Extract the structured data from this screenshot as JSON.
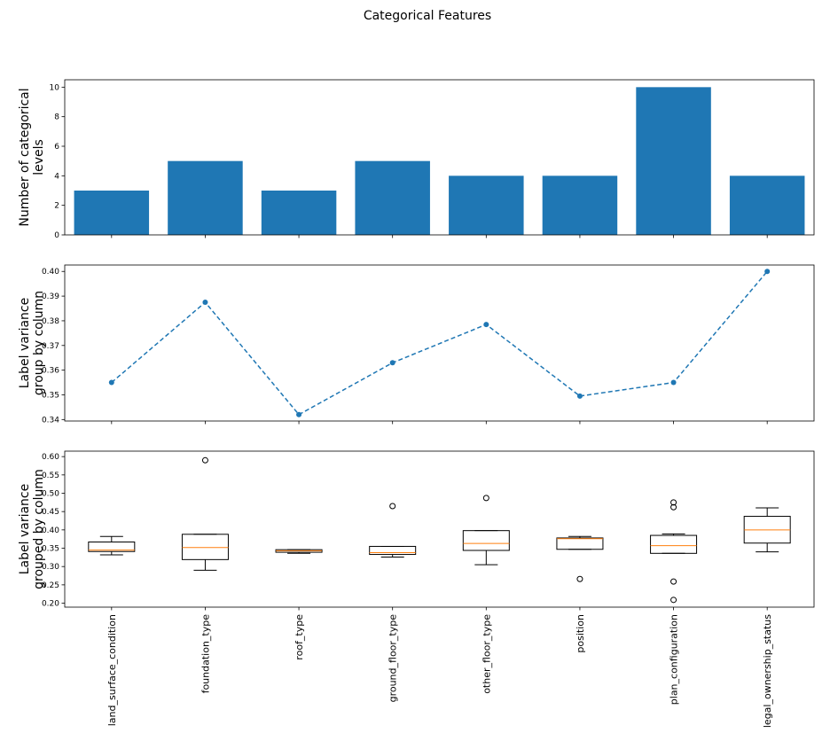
{
  "figure": {
    "title": "Categorical Features"
  },
  "colors": {
    "bar": "#1f77b4",
    "line": "#1f77b4",
    "median": "#ff7f0e",
    "box": "#000000"
  },
  "chart_data": [
    {
      "type": "bar",
      "categories": [
        "land_surface_condition",
        "foundation_type",
        "roof_type",
        "ground_floor_type",
        "other_floor_type",
        "position",
        "plan_configuration",
        "legal_ownership_status"
      ],
      "values": [
        3,
        5,
        3,
        5,
        4,
        4,
        10,
        4
      ],
      "ylabel_lines": [
        "Number of categorical",
        "levels"
      ],
      "ylim": [
        0,
        10.5
      ],
      "yticks": [
        0,
        2,
        4,
        6,
        8,
        10
      ],
      "ytick_labels": [
        "0",
        "2",
        "4",
        "6",
        "8",
        "10"
      ],
      "grid": false
    },
    {
      "type": "line",
      "style": "dashed with circle markers",
      "categories": [
        "land_surface_condition",
        "foundation_type",
        "roof_type",
        "ground_floor_type",
        "other_floor_type",
        "position",
        "plan_configuration",
        "legal_ownership_status"
      ],
      "values": [
        0.355,
        0.3875,
        0.342,
        0.363,
        0.3785,
        0.3495,
        0.355,
        0.4
      ],
      "ylabel_lines": [
        "Label variance",
        "group by column"
      ],
      "ylim": [
        0.3394,
        0.4026
      ],
      "yticks": [
        0.34,
        0.35,
        0.36,
        0.37,
        0.38,
        0.39,
        0.4
      ],
      "ytick_labels": [
        "0.34",
        "0.35",
        "0.36",
        "0.37",
        "0.38",
        "0.39",
        "0.40"
      ],
      "grid": false
    },
    {
      "type": "box",
      "categories": [
        "land_surface_condition",
        "foundation_type",
        "roof_type",
        "ground_floor_type",
        "other_floor_type",
        "position",
        "plan_configuration",
        "legal_ownership_status"
      ],
      "boxes": [
        {
          "whislo": 0.332,
          "q1": 0.341,
          "med": 0.345,
          "q3": 0.367,
          "whishi": 0.382,
          "fliers": []
        },
        {
          "whislo": 0.29,
          "q1": 0.319,
          "med": 0.352,
          "q3": 0.388,
          "whishi": 0.388,
          "fliers": [
            0.59
          ]
        },
        {
          "whislo": 0.336,
          "q1": 0.339,
          "med": 0.343,
          "q3": 0.346,
          "whishi": 0.346,
          "fliers": []
        },
        {
          "whislo": 0.326,
          "q1": 0.333,
          "med": 0.338,
          "q3": 0.355,
          "whishi": 0.355,
          "fliers": [
            0.465
          ]
        },
        {
          "whislo": 0.305,
          "q1": 0.344,
          "med": 0.363,
          "q3": 0.398,
          "whishi": 0.398,
          "fliers": [
            0.487
          ]
        },
        {
          "whislo": 0.347,
          "q1": 0.347,
          "med": 0.376,
          "q3": 0.378,
          "whishi": 0.382,
          "fliers": [
            0.266
          ]
        },
        {
          "whislo": 0.336,
          "q1": 0.336,
          "med": 0.357,
          "q3": 0.385,
          "whishi": 0.389,
          "fliers": [
            0.475,
            0.462,
            0.259,
            0.209
          ]
        },
        {
          "whislo": 0.34,
          "q1": 0.364,
          "med": 0.4,
          "q3": 0.437,
          "whishi": 0.46,
          "fliers": []
        }
      ],
      "ylabel_lines": [
        "Label variance",
        "grouped by column"
      ],
      "ylim": [
        0.1892,
        0.6149
      ],
      "yticks": [
        0.2,
        0.25,
        0.3,
        0.35,
        0.4,
        0.45,
        0.5,
        0.55,
        0.6
      ],
      "ytick_labels": [
        "0.20",
        "0.25",
        "0.30",
        "0.35",
        "0.40",
        "0.45",
        "0.50",
        "0.55",
        "0.60"
      ],
      "grid": false
    }
  ]
}
